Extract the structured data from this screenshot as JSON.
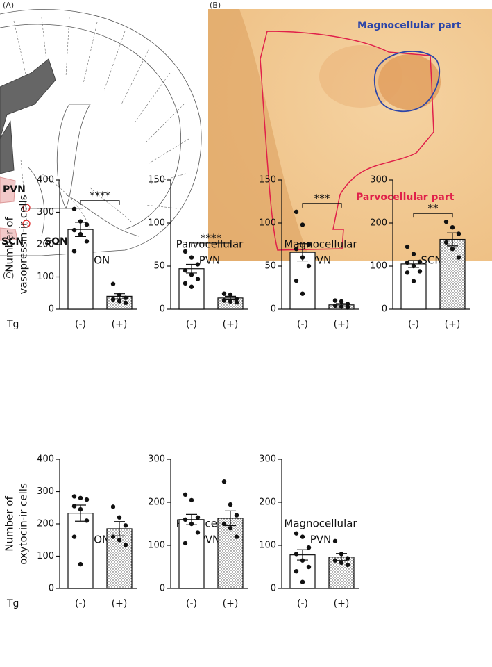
{
  "panels": {
    "a": {
      "label": "(A)",
      "regions": [
        "PVN",
        "SCN",
        "SON"
      ]
    },
    "b": {
      "label": "(B)",
      "annotations": [
        "Magnocellular part",
        "Parvocellular part"
      ]
    },
    "c": {
      "label": "(C)"
    }
  },
  "chart_data": [
    {
      "type": "bar",
      "title": [
        "SON"
      ],
      "ylabel": [
        "Number of",
        "vasopressin-ir cells"
      ],
      "xlabel": "Tg",
      "categories": [
        "(-)",
        "(+)"
      ],
      "values": [
        247,
        40
      ],
      "errors": [
        22,
        8
      ],
      "points": [
        [
          310,
          272,
          262,
          245,
          232,
          210,
          180
        ],
        [
          78,
          45,
          35,
          30,
          25,
          20
        ]
      ],
      "significance": "****",
      "ylim": [
        0,
        400
      ],
      "yticks": [
        0,
        100,
        200,
        300,
        400
      ]
    },
    {
      "type": "bar",
      "title": [
        "Parvocellular",
        "PVN"
      ],
      "categories": [
        "(-)",
        "(+)"
      ],
      "values": [
        47,
        13
      ],
      "errors": [
        5,
        2
      ],
      "points": [
        [
          67,
          60,
          52,
          45,
          40,
          35,
          30,
          26
        ],
        [
          18,
          17,
          12,
          10,
          9,
          8
        ]
      ],
      "significance": "****",
      "ylim": [
        0,
        150
      ],
      "yticks": [
        0,
        50,
        100,
        150
      ]
    },
    {
      "type": "bar",
      "title": [
        "Magnocellular",
        "PVN"
      ],
      "categories": [
        "(-)",
        "(+)"
      ],
      "values": [
        66,
        5
      ],
      "errors": [
        10,
        1.5
      ],
      "points": [
        [
          113,
          98,
          75,
          70,
          60,
          50,
          33,
          18
        ],
        [
          10,
          9,
          6,
          4,
          3,
          2
        ]
      ],
      "significance": "***",
      "ylim": [
        0,
        150
      ],
      "yticks": [
        0,
        50,
        100,
        150
      ]
    },
    {
      "type": "bar",
      "title": [
        "SCN"
      ],
      "categories": [
        "(-)",
        "(+)"
      ],
      "values": [
        105,
        162
      ],
      "errors": [
        8,
        15
      ],
      "points": [
        [
          145,
          128,
          110,
          108,
          100,
          88,
          85,
          65
        ],
        [
          203,
          190,
          175,
          155,
          140,
          120
        ]
      ],
      "significance": "**",
      "ylim": [
        0,
        300
      ],
      "yticks": [
        0,
        100,
        200,
        300
      ]
    },
    {
      "type": "bar",
      "title": [
        "SON"
      ],
      "ylabel": [
        "Number of",
        "oxytocin-ir cells"
      ],
      "xlabel": "Tg",
      "categories": [
        "(-)",
        "(+)"
      ],
      "values": [
        233,
        185
      ],
      "errors": [
        25,
        22
      ],
      "points": [
        [
          285,
          280,
          275,
          255,
          245,
          210,
          160,
          75
        ],
        [
          253,
          220,
          195,
          160,
          150,
          135
        ]
      ],
      "ylim": [
        0,
        400
      ],
      "yticks": [
        0,
        100,
        200,
        300,
        400
      ]
    },
    {
      "type": "bar",
      "title": [
        "Parvocellular",
        "PVN"
      ],
      "categories": [
        "(-)",
        "(+)"
      ],
      "values": [
        160,
        163
      ],
      "errors": [
        12,
        17
      ],
      "points": [
        [
          218,
          205,
          165,
          160,
          150,
          130,
          105
        ],
        [
          248,
          195,
          170,
          150,
          140,
          120
        ]
      ],
      "ylim": [
        0,
        300
      ],
      "yticks": [
        0,
        100,
        200,
        300
      ]
    },
    {
      "type": "bar",
      "title": [
        "Magnocellular",
        "PVN"
      ],
      "categories": [
        "(-)",
        "(+)"
      ],
      "values": [
        78,
        73
      ],
      "errors": [
        12,
        8
      ],
      "points": [
        [
          128,
          120,
          95,
          80,
          65,
          50,
          40,
          15
        ],
        [
          110,
          80,
          70,
          65,
          60,
          55
        ]
      ],
      "ylim": [
        0,
        300
      ],
      "yticks": [
        0,
        100,
        200,
        300
      ]
    }
  ]
}
